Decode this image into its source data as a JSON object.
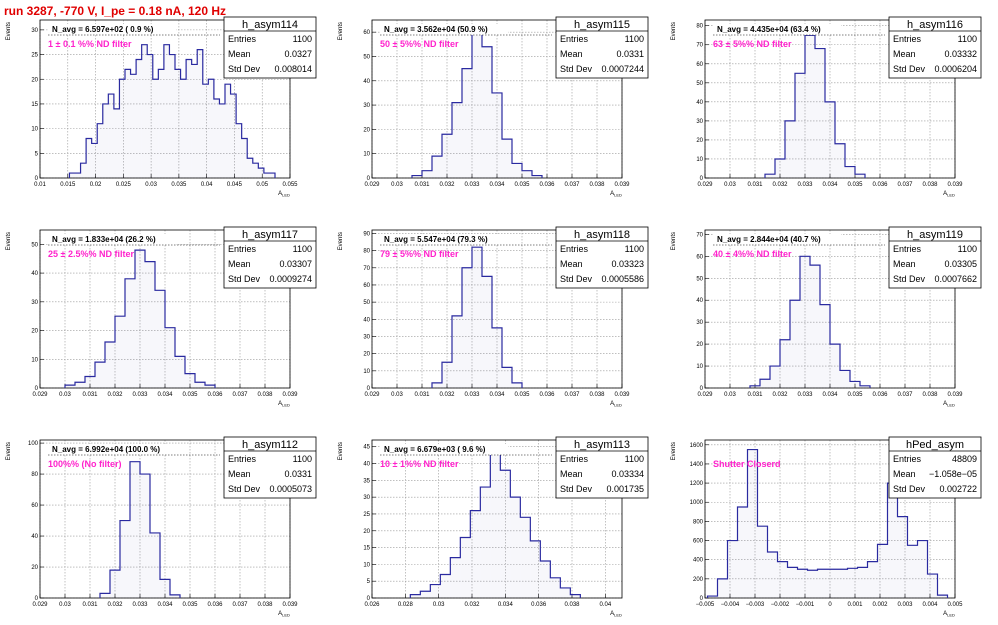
{
  "run_title": "run 3287,  -770 V, I_pe = 0.18 nA, 120 Hz",
  "colors": {
    "hist": "#2a2aa0",
    "filter_label": "#ff22cc",
    "run_title": "#e00000"
  },
  "chart_data": [
    {
      "type": "histogram",
      "name": "h_asym114",
      "stats": [
        [
          "Entries",
          "1100"
        ],
        [
          "Mean",
          "0.0327"
        ],
        [
          "Std Dev",
          "0.008014"
        ]
      ],
      "navg": "N_avg = 6.597e+02 ( 0.9 %)",
      "filter": "1 ± 0.1 %% ND filter",
      "xlabel": "A_{LED}",
      "ylabel": "Events",
      "xlim": [
        0.01,
        0.055
      ],
      "ylim": [
        0,
        32
      ],
      "grid": true,
      "xticks": [
        0.01,
        0.015,
        0.02,
        0.025,
        0.03,
        0.035,
        0.04,
        0.045,
        0.05,
        0.055
      ],
      "xtick_labels": [
        "0.01",
        "0.015",
        "0.02",
        "0.025",
        "0.03",
        "0.035",
        "0.04",
        "0.045",
        "0.05",
        "0.055"
      ],
      "yticks": [
        0,
        5,
        10,
        15,
        20,
        25,
        30
      ],
      "centers": [
        0.0158,
        0.0168,
        0.0178,
        0.0188,
        0.0198,
        0.0208,
        0.0218,
        0.0228,
        0.0238,
        0.0248,
        0.0258,
        0.0268,
        0.0278,
        0.0288,
        0.0298,
        0.0308,
        0.0318,
        0.0328,
        0.0338,
        0.0348,
        0.0358,
        0.0368,
        0.0378,
        0.0388,
        0.0398,
        0.0408,
        0.0418,
        0.0428,
        0.0438,
        0.0448,
        0.0458,
        0.0468,
        0.0478,
        0.0488,
        0.0498,
        0.0508,
        0.0518
      ],
      "values": [
        1,
        1,
        3,
        8,
        7,
        11,
        15,
        17,
        14,
        20,
        22,
        21,
        24,
        27,
        25,
        20,
        22,
        27,
        25,
        22,
        20,
        24,
        23,
        26,
        19,
        20,
        16,
        15,
        19,
        17,
        11,
        8,
        4,
        3,
        2,
        1,
        1
      ]
    },
    {
      "type": "histogram",
      "name": "h_asym115",
      "stats": [
        [
          "Entries",
          "1100"
        ],
        [
          "Mean",
          "0.0331"
        ],
        [
          "Std Dev",
          "0.0007244"
        ]
      ],
      "navg": "N_avg = 3.562e+04 (50.9 %)",
      "filter": "50 ± 5%% ND filter",
      "xlabel": "A_{LED}",
      "ylabel": "Events",
      "xlim": [
        0.029,
        0.039
      ],
      "ylim": [
        0,
        65
      ],
      "grid": true,
      "xticks": [
        0.029,
        0.03,
        0.031,
        0.032,
        0.033,
        0.034,
        0.035,
        0.036,
        0.037,
        0.038,
        0.039
      ],
      "xtick_labels": [
        "0.029",
        "0.03",
        "0.031",
        "0.032",
        "0.033",
        "0.034",
        "0.035",
        "0.036",
        "0.037",
        "0.038",
        "0.039"
      ],
      "yticks": [
        0,
        10,
        20,
        30,
        40,
        50,
        60
      ],
      "centers": [
        0.0308,
        0.0312,
        0.0316,
        0.032,
        0.0324,
        0.0328,
        0.0332,
        0.0336,
        0.034,
        0.0344,
        0.0348,
        0.0352,
        0.0356
      ],
      "values": [
        1,
        3,
        9,
        18,
        31,
        45,
        62,
        54,
        35,
        16,
        6,
        3,
        1
      ]
    },
    {
      "type": "histogram",
      "name": "h_asym116",
      "stats": [
        [
          "Entries",
          "1100"
        ],
        [
          "Mean",
          "0.03332"
        ],
        [
          "Std Dev",
          "0.0006204"
        ]
      ],
      "navg": "N_avg = 4.435e+04 (63.4 %)",
      "filter": "63 ± 5%% ND filter",
      "xlabel": "A_{LED}",
      "ylabel": "Events",
      "xlim": [
        0.029,
        0.039
      ],
      "ylim": [
        0,
        83
      ],
      "grid": true,
      "xticks": [
        0.029,
        0.03,
        0.031,
        0.032,
        0.033,
        0.034,
        0.035,
        0.036,
        0.037,
        0.038,
        0.039
      ],
      "xtick_labels": [
        "0.029",
        "0.03",
        "0.031",
        "0.032",
        "0.033",
        "0.034",
        "0.035",
        "0.036",
        "0.037",
        "0.038",
        "0.039"
      ],
      "yticks": [
        0,
        10,
        20,
        30,
        40,
        50,
        60,
        70,
        80
      ],
      "centers": [
        0.0316,
        0.032,
        0.0324,
        0.0328,
        0.0332,
        0.0336,
        0.034,
        0.0344,
        0.0348,
        0.0352
      ],
      "values": [
        2,
        10,
        30,
        55,
        75,
        68,
        40,
        18,
        6,
        2
      ]
    },
    {
      "type": "histogram",
      "name": "h_asym117",
      "stats": [
        [
          "Entries",
          "1100"
        ],
        [
          "Mean",
          "0.03307"
        ],
        [
          "Std Dev",
          "0.0009274"
        ]
      ],
      "navg": "N_avg = 1.833e+04 (26.2 %)",
      "filter": "25 ± 2.5%% ND filter",
      "xlabel": "A_{LED}",
      "ylabel": "Events",
      "xlim": [
        0.029,
        0.039
      ],
      "ylim": [
        0,
        55
      ],
      "grid": true,
      "xticks": [
        0.029,
        0.03,
        0.031,
        0.032,
        0.033,
        0.034,
        0.035,
        0.036,
        0.037,
        0.038,
        0.039
      ],
      "xtick_labels": [
        "0.029",
        "0.03",
        "0.031",
        "0.032",
        "0.033",
        "0.034",
        "0.035",
        "0.036",
        "0.037",
        "0.038",
        "0.039"
      ],
      "yticks": [
        0,
        10,
        20,
        30,
        40,
        50
      ],
      "centers": [
        0.0302,
        0.0306,
        0.031,
        0.0314,
        0.0318,
        0.0322,
        0.0326,
        0.033,
        0.0334,
        0.0338,
        0.0342,
        0.0346,
        0.035,
        0.0354,
        0.0358
      ],
      "values": [
        1,
        2,
        4,
        9,
        16,
        25,
        38,
        48,
        44,
        34,
        21,
        11,
        5,
        2,
        1
      ]
    },
    {
      "type": "histogram",
      "name": "h_asym118",
      "stats": [
        [
          "Entries",
          "1100"
        ],
        [
          "Mean",
          "0.03323"
        ],
        [
          "Std Dev",
          "0.0005586"
        ]
      ],
      "navg": "N_avg = 5.547e+04 (79.3 %)",
      "filter": "79 ± 5%% ND filter",
      "xlabel": "A_{LED}",
      "ylabel": "Events",
      "xlim": [
        0.029,
        0.039
      ],
      "ylim": [
        0,
        92
      ],
      "grid": true,
      "xticks": [
        0.029,
        0.03,
        0.031,
        0.032,
        0.033,
        0.034,
        0.035,
        0.036,
        0.037,
        0.038,
        0.039
      ],
      "xtick_labels": [
        "0.029",
        "0.03",
        "0.031",
        "0.032",
        "0.033",
        "0.034",
        "0.035",
        "0.036",
        "0.037",
        "0.038",
        "0.039"
      ],
      "yticks": [
        0,
        10,
        20,
        30,
        40,
        50,
        60,
        70,
        80,
        90
      ],
      "centers": [
        0.0316,
        0.032,
        0.0324,
        0.0328,
        0.0332,
        0.0336,
        0.034,
        0.0344,
        0.0348
      ],
      "values": [
        3,
        15,
        42,
        70,
        82,
        65,
        35,
        12,
        3
      ]
    },
    {
      "type": "histogram",
      "name": "h_asym119",
      "stats": [
        [
          "Entries",
          "1100"
        ],
        [
          "Mean",
          "0.03305"
        ],
        [
          "Std Dev",
          "0.0007662"
        ]
      ],
      "navg": "N_avg = 2.844e+04 (40.7 %)",
      "filter": "40 ± 4%% ND filter",
      "xlabel": "A_{LED}",
      "ylabel": "Events",
      "xlim": [
        0.029,
        0.039
      ],
      "ylim": [
        0,
        72
      ],
      "grid": true,
      "xticks": [
        0.029,
        0.03,
        0.031,
        0.032,
        0.033,
        0.034,
        0.035,
        0.036,
        0.037,
        0.038,
        0.039
      ],
      "xtick_labels": [
        "0.029",
        "0.03",
        "0.031",
        "0.032",
        "0.033",
        "0.034",
        "0.035",
        "0.036",
        "0.037",
        "0.038",
        "0.039"
      ],
      "yticks": [
        0,
        10,
        20,
        30,
        40,
        50,
        60,
        70
      ],
      "centers": [
        0.031,
        0.0314,
        0.0318,
        0.0322,
        0.0326,
        0.033,
        0.0334,
        0.0338,
        0.0342,
        0.0346,
        0.035,
        0.0354
      ],
      "values": [
        1,
        4,
        10,
        22,
        40,
        60,
        56,
        38,
        20,
        8,
        3,
        1
      ]
    },
    {
      "type": "histogram",
      "name": "h_asym112",
      "stats": [
        [
          "Entries",
          "1100"
        ],
        [
          "Mean",
          "0.0331"
        ],
        [
          "Std Dev",
          "0.0005073"
        ]
      ],
      "navg": "N_avg = 6.992e+04 (100.0 %)",
      "filter": "100%% (No filter)",
      "xlabel": "A_{LED}",
      "ylabel": "Events",
      "xlim": [
        0.029,
        0.039
      ],
      "ylim": [
        0,
        102
      ],
      "grid": true,
      "xticks": [
        0.029,
        0.03,
        0.031,
        0.032,
        0.033,
        0.034,
        0.035,
        0.036,
        0.037,
        0.038,
        0.039
      ],
      "xtick_labels": [
        "0.029",
        "0.03",
        "0.031",
        "0.032",
        "0.033",
        "0.034",
        "0.035",
        "0.036",
        "0.037",
        "0.038",
        "0.039"
      ],
      "yticks": [
        0,
        20,
        40,
        60,
        80,
        100
      ],
      "centers": [
        0.0316,
        0.032,
        0.0324,
        0.0328,
        0.0332,
        0.0336,
        0.034,
        0.0344
      ],
      "values": [
        3,
        18,
        50,
        88,
        80,
        42,
        12,
        2
      ]
    },
    {
      "type": "histogram",
      "name": "h_asym113",
      "stats": [
        [
          "Entries",
          "1100"
        ],
        [
          "Mean",
          "0.03334"
        ],
        [
          "Std Dev",
          "0.001735"
        ]
      ],
      "navg": "N_avg = 6.679e+03 ( 9.6 %)",
      "filter": "10 ± 1%% ND filter",
      "xlabel": "A_{LED}",
      "ylabel": "Events",
      "xlim": [
        0.026,
        0.041
      ],
      "ylim": [
        0,
        47
      ],
      "grid": true,
      "xticks": [
        0.026,
        0.028,
        0.03,
        0.032,
        0.034,
        0.036,
        0.038,
        0.04
      ],
      "xtick_labels": [
        "0.026",
        "0.028",
        "0.03",
        "0.032",
        "0.034",
        "0.036",
        "0.038",
        "0.04"
      ],
      "yticks": [
        0,
        5,
        10,
        15,
        20,
        25,
        30,
        35,
        40,
        45
      ],
      "centers": [
        0.0286,
        0.0292,
        0.0298,
        0.0304,
        0.031,
        0.0316,
        0.0322,
        0.0328,
        0.0334,
        0.034,
        0.0346,
        0.0352,
        0.0358,
        0.0364,
        0.037,
        0.0376,
        0.0382
      ],
      "values": [
        1,
        2,
        4,
        7,
        12,
        18,
        26,
        33,
        43,
        38,
        30,
        24,
        17,
        11,
        6,
        3,
        1
      ]
    },
    {
      "type": "histogram",
      "name": "hPed_asym",
      "stats": [
        [
          "Entries",
          "48809"
        ],
        [
          "Mean",
          "−1.058e−05"
        ],
        [
          "Std Dev",
          "0.002722"
        ]
      ],
      "navg": "",
      "filter": "Shutter Closerd",
      "xlabel": "A_{LED}",
      "ylabel": "Events",
      "xlim": [
        -0.005,
        0.005
      ],
      "ylim": [
        0,
        1650
      ],
      "grid": true,
      "xticks": [
        -0.005,
        -0.004,
        -0.003,
        -0.002,
        -0.001,
        0,
        0.001,
        0.002,
        0.003,
        0.004,
        0.005
      ],
      "xtick_labels": [
        "−0.005",
        "−0.004",
        "−0.003",
        "−0.002",
        "−0.001",
        "0",
        "0.001",
        "0.002",
        "0.003",
        "0.004",
        "0.005"
      ],
      "yticks": [
        0,
        200,
        400,
        600,
        800,
        1000,
        1200,
        1400,
        1600
      ],
      "centers": [
        -0.0047,
        -0.0043,
        -0.0039,
        -0.0035,
        -0.0031,
        -0.0027,
        -0.0023,
        -0.0019,
        -0.0015,
        -0.0011,
        -0.0007,
        -0.0003,
        0.0001,
        0.0005,
        0.0009,
        0.0013,
        0.0017,
        0.0021,
        0.0025,
        0.0029,
        0.0033,
        0.0037,
        0.0041,
        0.0045
      ],
      "values": [
        20,
        200,
        600,
        950,
        1550,
        750,
        480,
        380,
        320,
        300,
        290,
        300,
        300,
        300,
        310,
        320,
        380,
        560,
        1200,
        850,
        550,
        600,
        250,
        30
      ]
    }
  ]
}
